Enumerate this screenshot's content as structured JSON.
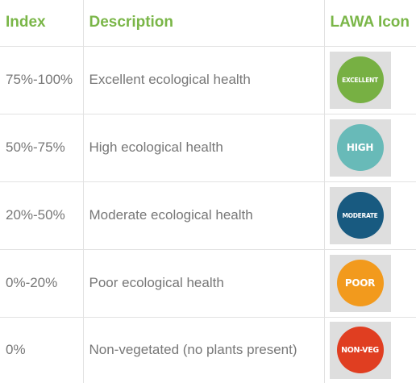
{
  "headers": {
    "index": "Index",
    "description": "Description",
    "icon": "LAWA Icon"
  },
  "rows": [
    {
      "index": "75%-100%",
      "description": "Excellent ecological health",
      "icon_label": "EXCELLENT",
      "icon_color": "#77b043"
    },
    {
      "index": "50%-75%",
      "description": "High ecological health",
      "icon_label": "HIGH",
      "icon_color": "#68bab8"
    },
    {
      "index": "20%-50%",
      "description": "Moderate ecological health",
      "icon_label": "MODERATE",
      "icon_color": "#185a80"
    },
    {
      "index": "0%-20%",
      "description": "Poor ecological health",
      "icon_label": "POOR",
      "icon_color": "#f29a1d"
    },
    {
      "index": "0%",
      "description": "Non-vegetated (no plants present)",
      "icon_label": "NON-VEG",
      "icon_color": "#e03e21"
    }
  ],
  "theme": {
    "header_color": "#7ab648",
    "text_color": "#777777",
    "grid_color": "#e2e2e2",
    "tile_color": "#dedede"
  }
}
